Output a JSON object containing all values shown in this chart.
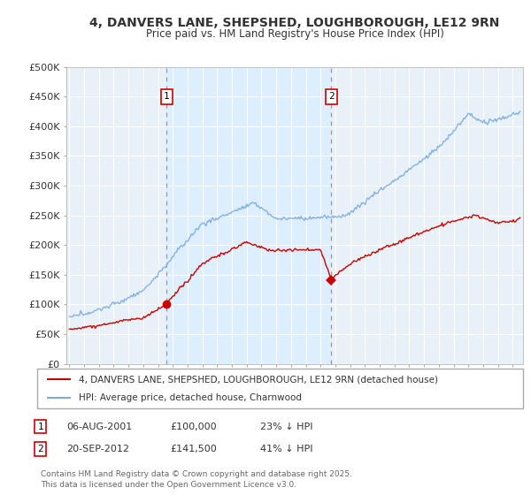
{
  "title": "4, DANVERS LANE, SHEPSHED, LOUGHBOROUGH, LE12 9RN",
  "subtitle": "Price paid vs. HM Land Registry's House Price Index (HPI)",
  "ylabel_ticks": [
    "£0",
    "£50K",
    "£100K",
    "£150K",
    "£200K",
    "£250K",
    "£300K",
    "£350K",
    "£400K",
    "£450K",
    "£500K"
  ],
  "ylim": [
    0,
    500000
  ],
  "xlim_start": 1994.8,
  "xlim_end": 2025.7,
  "purchase1_x": 2001.59,
  "purchase1_y": 100000,
  "purchase2_x": 2012.72,
  "purchase2_y": 141500,
  "purchase1_date": "06-AUG-2001",
  "purchase1_price": "£100,000",
  "purchase1_hpi": "23% ↓ HPI",
  "purchase2_date": "20-SEP-2012",
  "purchase2_price": "£141,500",
  "purchase2_hpi": "41% ↓ HPI",
  "legend_line1": "4, DANVERS LANE, SHEPSHED, LOUGHBOROUGH, LE12 9RN (detached house)",
  "legend_line2": "HPI: Average price, detached house, Charnwood",
  "footer": "Contains HM Land Registry data © Crown copyright and database right 2025.\nThis data is licensed under the Open Government Licence v3.0.",
  "red_color": "#cc0000",
  "blue_color": "#7aabe0",
  "shade_color": "#ddeeff",
  "bg_color": "#e8f0f8",
  "grid_color": "#ffffff",
  "dashed_color": "#888888"
}
